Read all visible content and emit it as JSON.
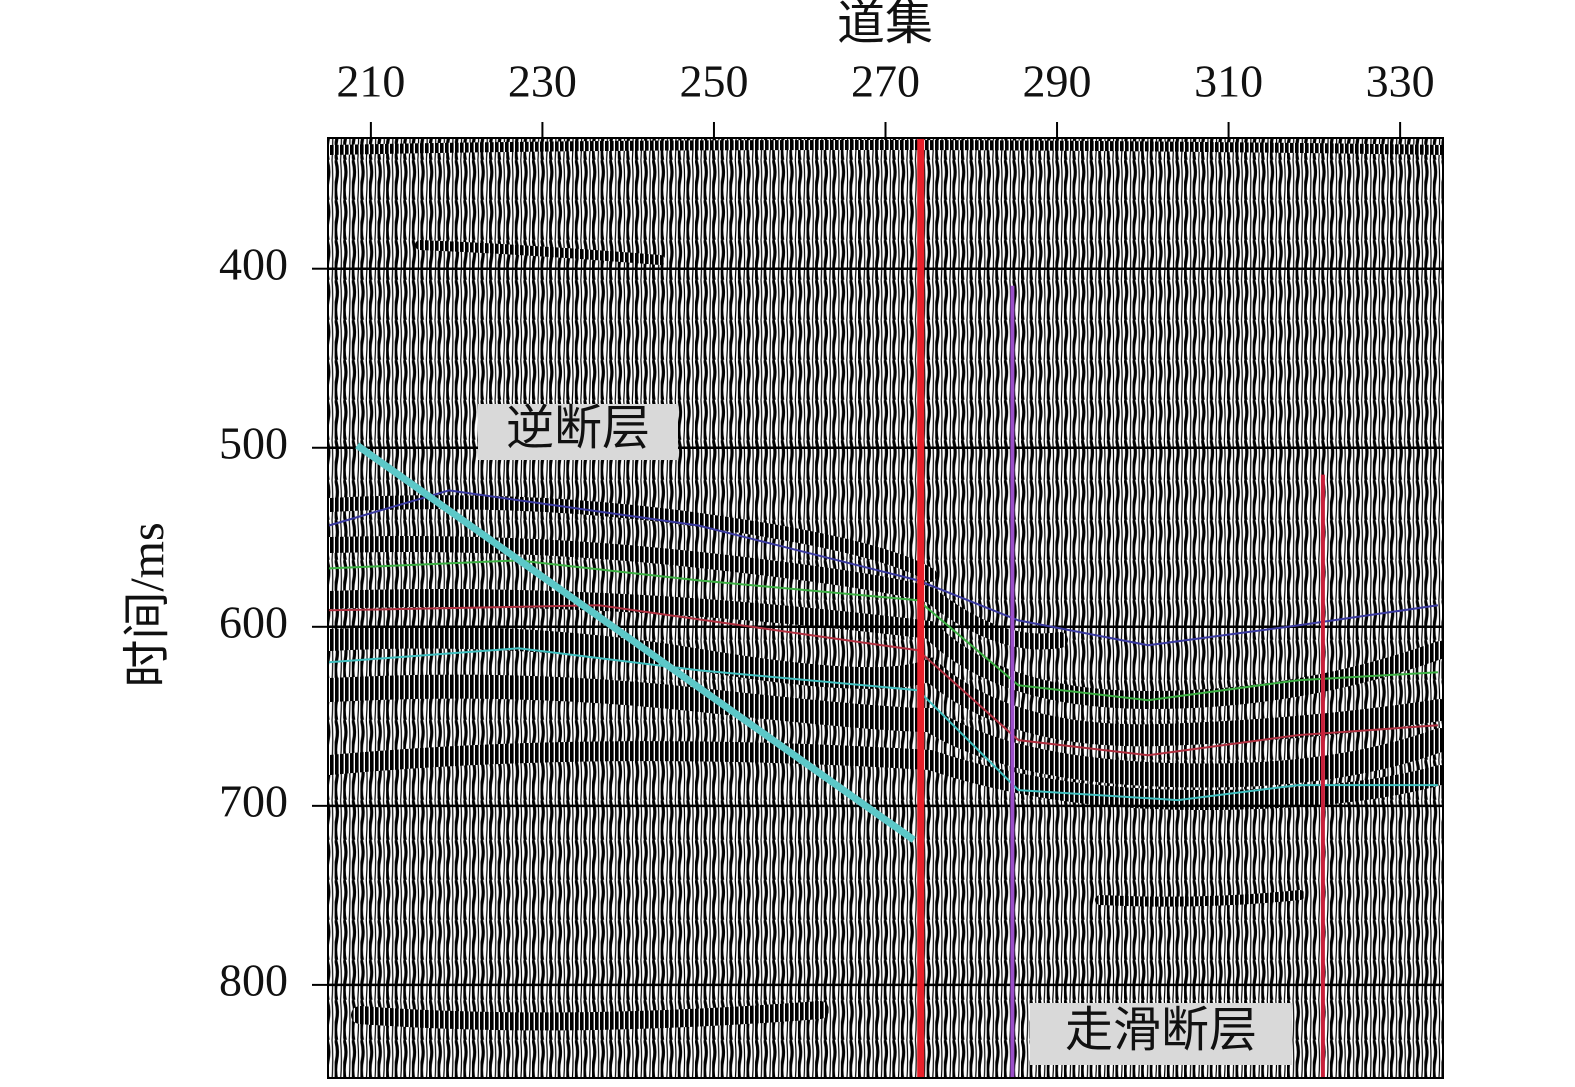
{
  "chart_data": {
    "type": "seismic-section",
    "xlabel": "道集",
    "ylabel": "时间/ms",
    "xlim": [
      205,
      335
    ],
    "ylim": [
      327,
      852
    ],
    "y_inverted": true,
    "x_axis_position": "top",
    "xticks": [
      210,
      230,
      250,
      270,
      290,
      310,
      330
    ],
    "yticks": [
      400,
      500,
      600,
      700,
      800
    ],
    "grid": true,
    "faults": [
      {
        "color": "#5cc8c8",
        "x": [
          208.4,
          273.3
        ],
        "y": [
          498.7,
          719
        ]
      },
      {
        "color": "#e8202a",
        "x": [
          274.1,
          274.1
        ],
        "y": [
          327,
          852
        ]
      },
      {
        "color": "#9b4fc9",
        "x": [
          284.8,
          284.8
        ],
        "y": [
          409.5,
          852
        ]
      },
      {
        "color": "#c8203a",
        "x": [
          321,
          321
        ],
        "y": [
          515,
          852
        ]
      }
    ],
    "horizons": [
      {
        "color": "#3a3aa0",
        "x": [
          205.1,
          219.1,
          248.2,
          273.8,
          285.5,
          300.6,
          318.1,
          334.4
        ],
        "y": [
          543.4,
          523.8,
          543.4,
          574.1,
          596.4,
          610.3,
          599.2,
          588
        ]
      },
      {
        "color": "#3cb043",
        "x": [
          205.1,
          227.2,
          248.2,
          273.8,
          285.5,
          300.6,
          318.1,
          334.4
        ],
        "y": [
          567.4,
          562.9,
          574.1,
          585.2,
          632.6,
          641,
          629.8,
          625.4
        ]
      },
      {
        "color": "#b03040",
        "x": [
          205.1,
          236.6,
          273.8,
          285.5,
          300.6,
          318.1,
          334.4
        ],
        "y": [
          590.8,
          588,
          613.1,
          663.3,
          671.7,
          660.5,
          655
        ]
      },
      {
        "color": "#40c0c0",
        "x": [
          205.1,
          227.2,
          248.2,
          273.8,
          285.5,
          304.1,
          318.1,
          334.4
        ],
        "y": [
          619.8,
          612,
          624.3,
          635.4,
          691.2,
          696.8,
          688.4,
          688.4
        ]
      }
    ],
    "annotations": [
      {
        "text": "逆断层",
        "color": "#5cc8c8"
      },
      {
        "text": "走滑断层",
        "color": "#e8202a"
      }
    ]
  }
}
